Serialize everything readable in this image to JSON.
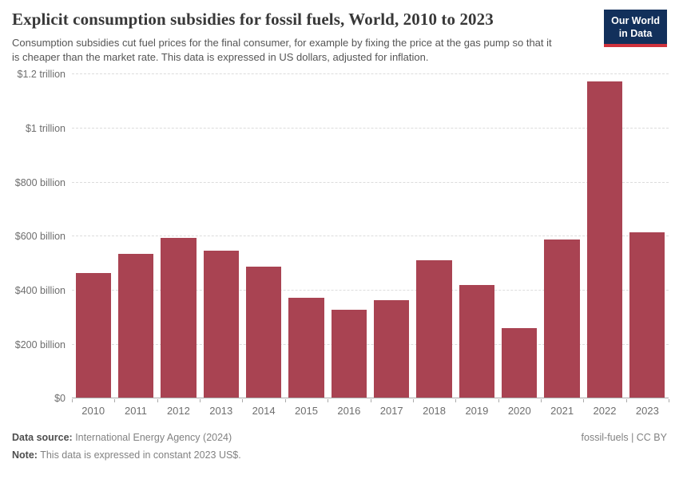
{
  "header": {
    "title": "Explicit consumption subsidies for fossil fuels, World, 2010 to 2023",
    "subtitle": "Consumption subsidies cut fuel prices for the final consumer, for example by fixing the price at the gas pump so that it is cheaper than the market rate. This data is expressed in US dollars, adjusted for inflation.",
    "logo": {
      "line1": "Our World",
      "line2": "in Data",
      "bg_color": "#12305b",
      "accent_color": "#cf323c"
    }
  },
  "chart_data": {
    "type": "bar",
    "title": "Explicit consumption subsidies for fossil fuels, World, 2010 to 2023",
    "categories": [
      "2010",
      "2011",
      "2012",
      "2013",
      "2014",
      "2015",
      "2016",
      "2017",
      "2018",
      "2019",
      "2020",
      "2021",
      "2022",
      "2023"
    ],
    "values": [
      466,
      537,
      596,
      548,
      488,
      375,
      328,
      366,
      512,
      422,
      262,
      588,
      1176,
      617
    ],
    "values_unit": "billion US$",
    "ylim": [
      0,
      1200
    ],
    "y_ticks": [
      {
        "value": 0,
        "label": "$0"
      },
      {
        "value": 200,
        "label": "$200 billion"
      },
      {
        "value": 400,
        "label": "$400 billion"
      },
      {
        "value": 600,
        "label": "$600 billion"
      },
      {
        "value": 800,
        "label": "$800 billion"
      },
      {
        "value": 1000,
        "label": "$1 trillion"
      },
      {
        "value": 1200,
        "label": "$1.2 trillion"
      }
    ],
    "bar_color": "#a94352",
    "grid": true,
    "gridline_color": "#dcdcdc",
    "legend": "none"
  },
  "footer": {
    "source_label": "Data source:",
    "source_value": " International Energy Agency (2024)",
    "note_label": "Note:",
    "note_value": " This data is expressed in constant 2023 US$.",
    "rights": "fossil-fuels | CC BY"
  }
}
